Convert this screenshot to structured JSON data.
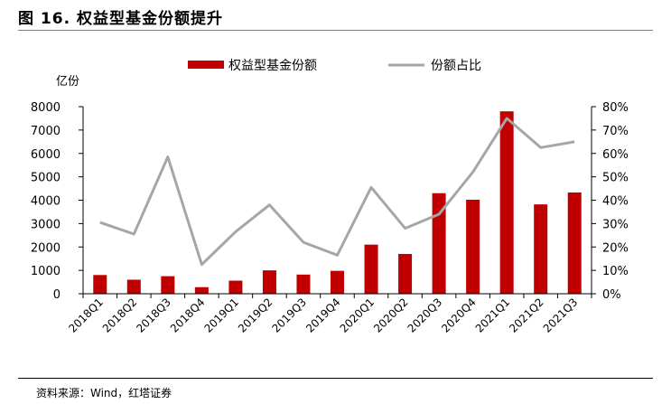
{
  "figure": {
    "title": "图 16. 权益型基金份额提升",
    "source": "资料来源：Wind，红塔证券"
  },
  "chart_data": {
    "type": "bar",
    "title": "",
    "categories": [
      "2018Q1",
      "2018Q2",
      "2018Q3",
      "2018Q4",
      "2019Q1",
      "2019Q2",
      "2019Q3",
      "2019Q4",
      "2020Q1",
      "2020Q2",
      "2020Q3",
      "2020Q4",
      "2021Q1",
      "2021Q2",
      "2021Q3"
    ],
    "series": [
      {
        "name": "权益型基金份额",
        "type": "bar",
        "axis": "left",
        "color": "#c00000",
        "values": [
          800,
          600,
          750,
          280,
          560,
          1000,
          820,
          980,
          2100,
          1700,
          4300,
          4020,
          7800,
          3820,
          4330
        ]
      },
      {
        "name": "份额占比",
        "type": "line",
        "axis": "right",
        "color": "#a6a6a6",
        "values": [
          30.5,
          25.5,
          58.5,
          12.5,
          26.5,
          38,
          22,
          16.5,
          45.5,
          28,
          34,
          52,
          75,
          62.5,
          65
        ]
      }
    ],
    "y_left": {
      "label": "亿份",
      "min": 0,
      "max": 8000,
      "step": 1000,
      "ticks": [
        "0",
        "1000",
        "2000",
        "3000",
        "4000",
        "5000",
        "6000",
        "7000",
        "8000"
      ]
    },
    "y_right": {
      "min": 0,
      "max": 80,
      "step": 10,
      "ticks": [
        "0%",
        "10%",
        "20%",
        "30%",
        "40%",
        "50%",
        "60%",
        "70%",
        "80%"
      ]
    },
    "grid": false,
    "legend_position": "top-center"
  }
}
